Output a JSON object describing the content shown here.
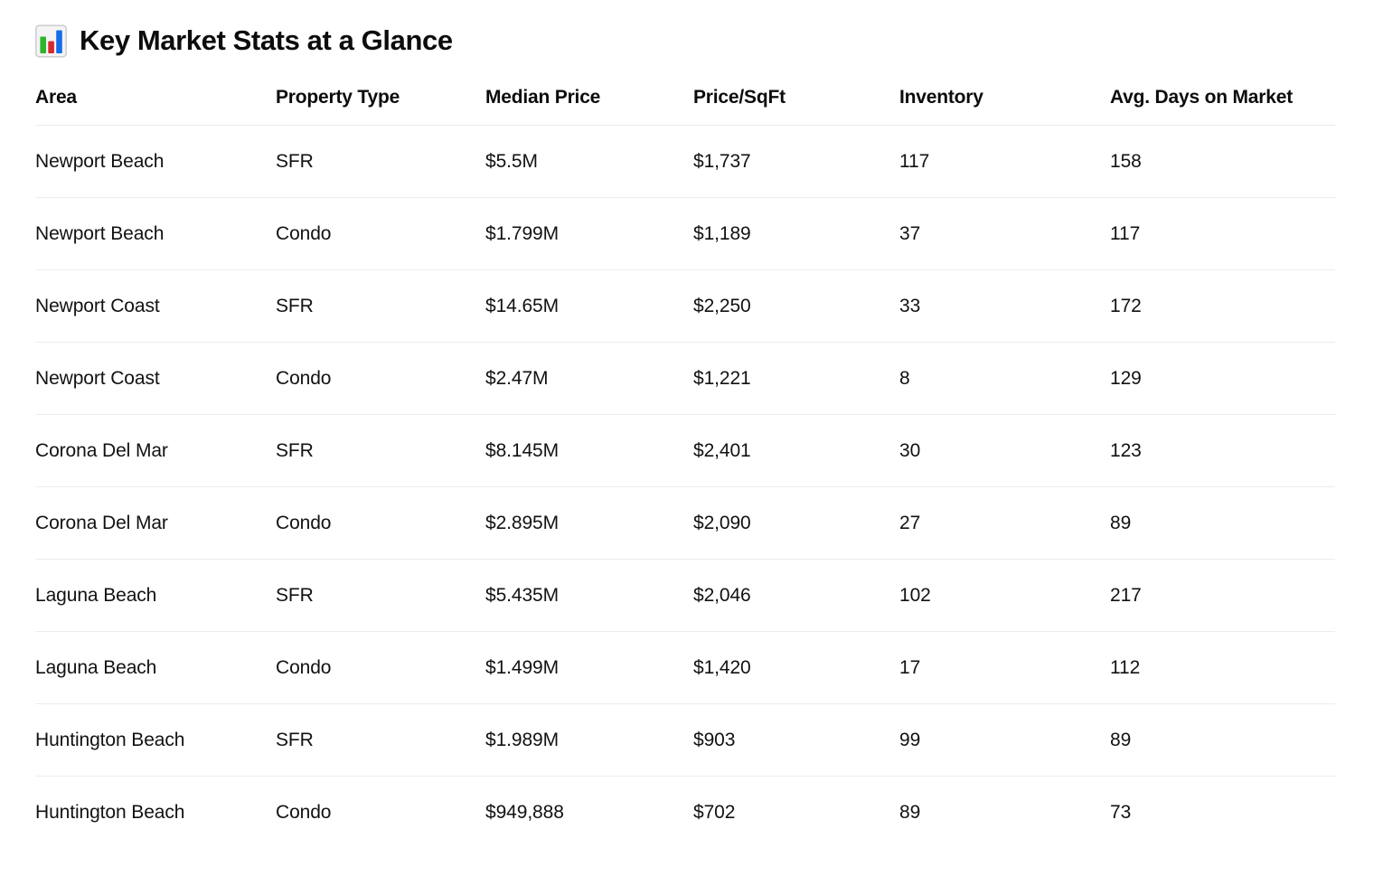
{
  "page": {
    "title": "Key Market Stats at a Glance",
    "title_icon": "bar-chart-emoji"
  },
  "table": {
    "columns": [
      "Area",
      "Property Type",
      "Median Price",
      "Price/SqFt",
      "Inventory",
      "Avg. Days on Market"
    ],
    "rows": [
      [
        "Newport Beach",
        "SFR",
        "$5.5M",
        "$1,737",
        "117",
        "158"
      ],
      [
        "Newport Beach",
        "Condo",
        "$1.799M",
        "$1,189",
        "37",
        "117"
      ],
      [
        "Newport Coast",
        "SFR",
        "$14.65M",
        "$2,250",
        "33",
        "172"
      ],
      [
        "Newport Coast",
        "Condo",
        "$2.47M",
        "$1,221",
        "8",
        "129"
      ],
      [
        "Corona Del Mar",
        "SFR",
        "$8.145M",
        "$2,401",
        "30",
        "123"
      ],
      [
        "Corona Del Mar",
        "Condo",
        "$2.895M",
        "$2,090",
        "27",
        "89"
      ],
      [
        "Laguna Beach",
        "SFR",
        "$5.435M",
        "$2,046",
        "102",
        "217"
      ],
      [
        "Laguna Beach",
        "Condo",
        "$1.499M",
        "$1,420",
        "17",
        "112"
      ],
      [
        "Huntington Beach",
        "SFR",
        "$1.989M",
        "$903",
        "99",
        "89"
      ],
      [
        "Huntington Beach",
        "Condo",
        "$949,888",
        "$702",
        "89",
        "73"
      ]
    ]
  },
  "colors": {
    "text": "#111213",
    "divider": "#ececee",
    "background": "#ffffff",
    "icon_green": "#2eb52c",
    "icon_red": "#d7282f",
    "icon_blue": "#156cea",
    "icon_frame": "#c9c9cd"
  }
}
